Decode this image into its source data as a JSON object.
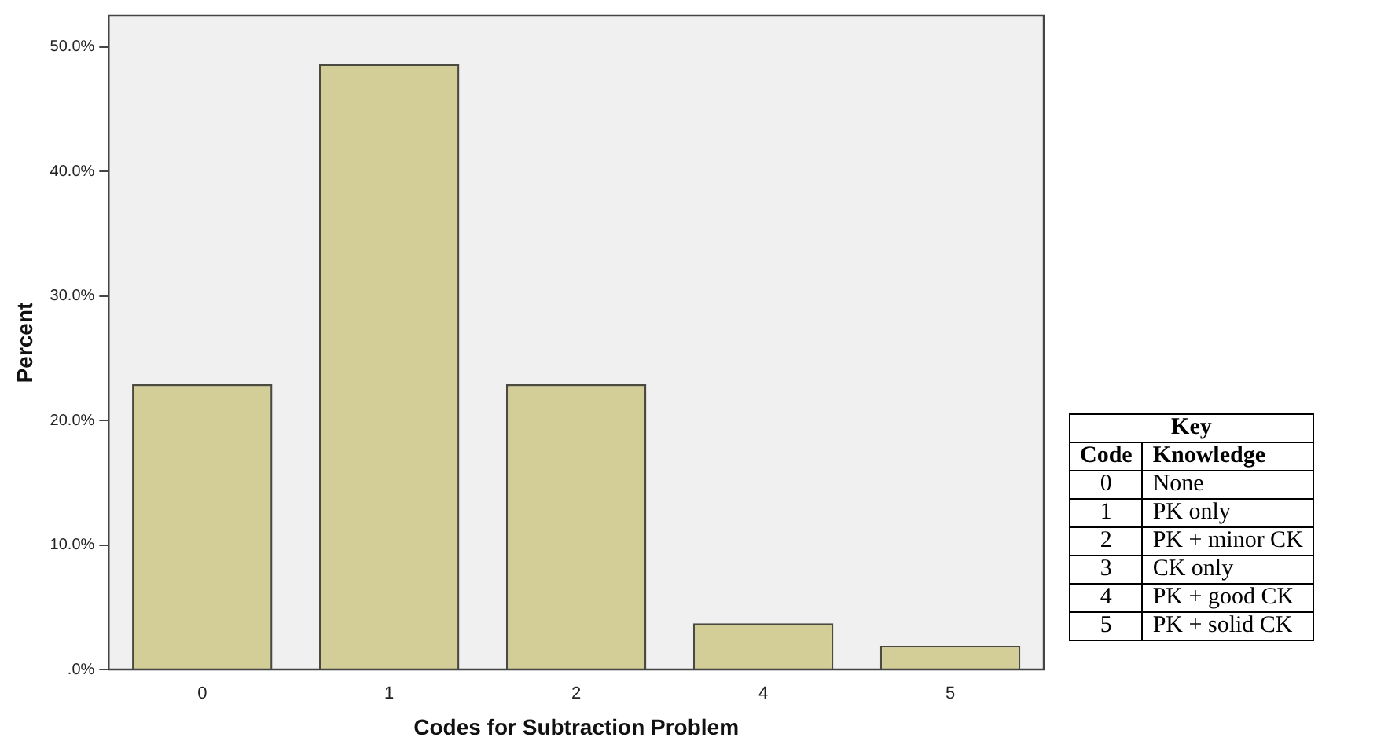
{
  "chart_data": {
    "type": "bar",
    "xlabel": "Codes for Subtraction Problem",
    "ylabel": "Percent",
    "categories": [
      "0",
      "1",
      "2",
      "4",
      "5"
    ],
    "values": [
      22.9,
      48.6,
      22.9,
      3.7,
      1.9
    ],
    "color": "#d3ce97",
    "ylim": [
      0,
      52.5
    ],
    "yticks": [
      {
        "value": 0,
        "label": ".0%"
      },
      {
        "value": 10,
        "label": "10.0%"
      },
      {
        "value": 20,
        "label": "20.0%"
      },
      {
        "value": 30,
        "label": "30.0%"
      },
      {
        "value": 40,
        "label": "40.0%"
      },
      {
        "value": 50,
        "label": "50.0%"
      }
    ],
    "grid": false,
    "legend": false,
    "annotations": [
      "Key",
      "Code",
      "Knowledge",
      "0",
      "None",
      "1",
      "PK only",
      "2",
      "PK + minor CK",
      "3",
      "CK only",
      "4",
      "PK + good CK",
      "5",
      "PK + solid CK"
    ]
  }
}
